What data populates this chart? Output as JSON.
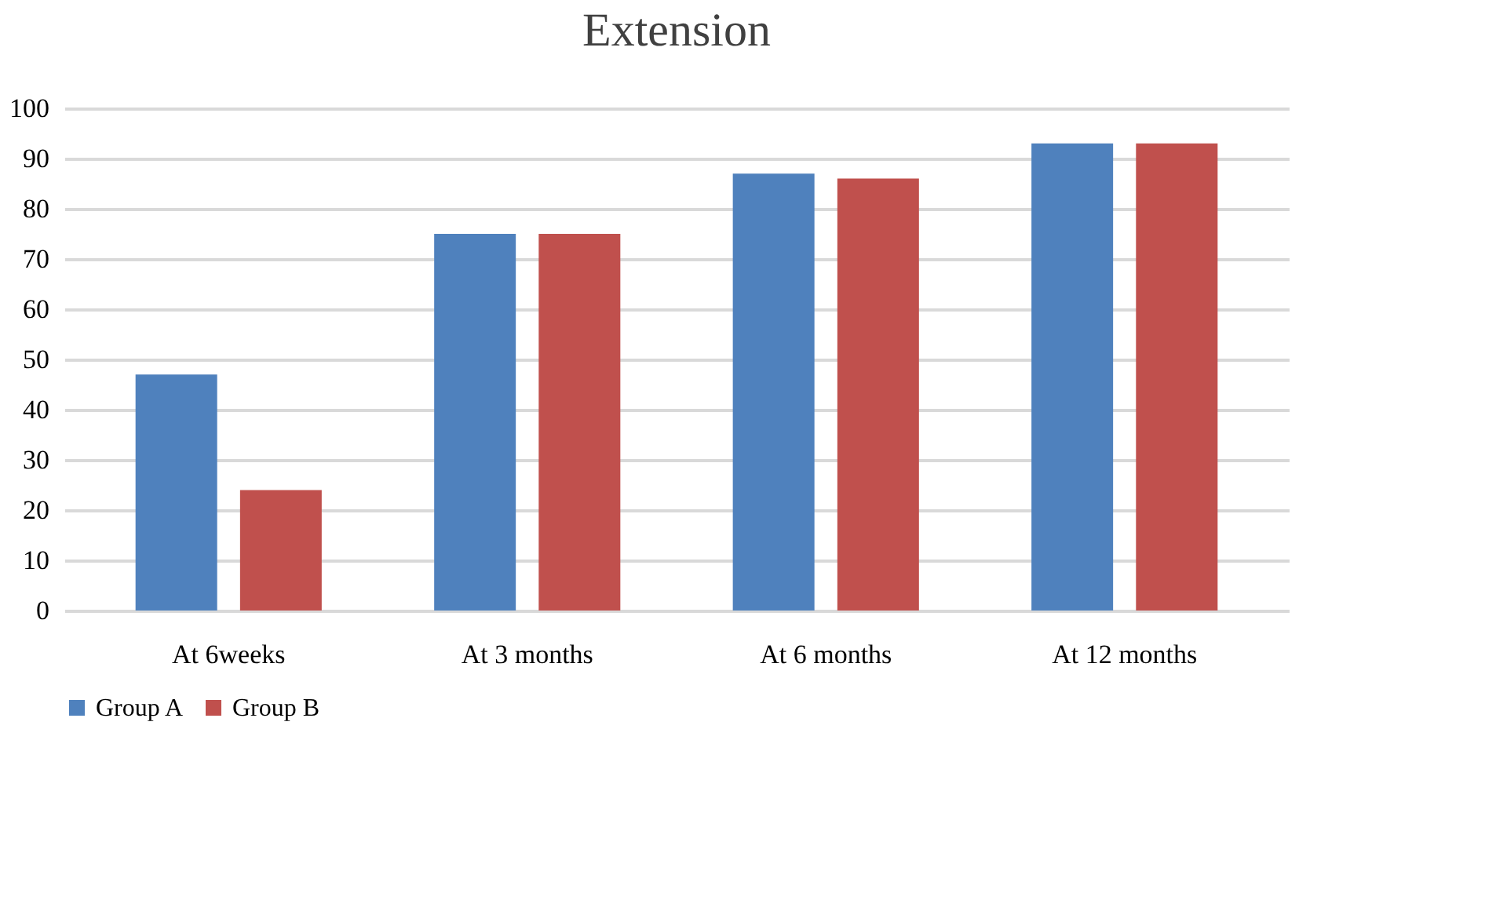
{
  "chart_data": {
    "type": "bar",
    "title": "Extension",
    "categories": [
      "At 6weeks",
      "At 3 months",
      "At 6 months",
      "At 12 months"
    ],
    "series": [
      {
        "name": "Group A",
        "color": "#4f81bd",
        "values": [
          47,
          75,
          87,
          93
        ]
      },
      {
        "name": "Group B",
        "color": "#c0504d",
        "values": [
          24,
          75,
          86,
          93
        ]
      }
    ],
    "ylim": [
      0,
      100
    ],
    "yticks": [
      0,
      10,
      20,
      30,
      40,
      50,
      60,
      70,
      80,
      90,
      100
    ],
    "grid": "y",
    "legend": "bottom"
  }
}
